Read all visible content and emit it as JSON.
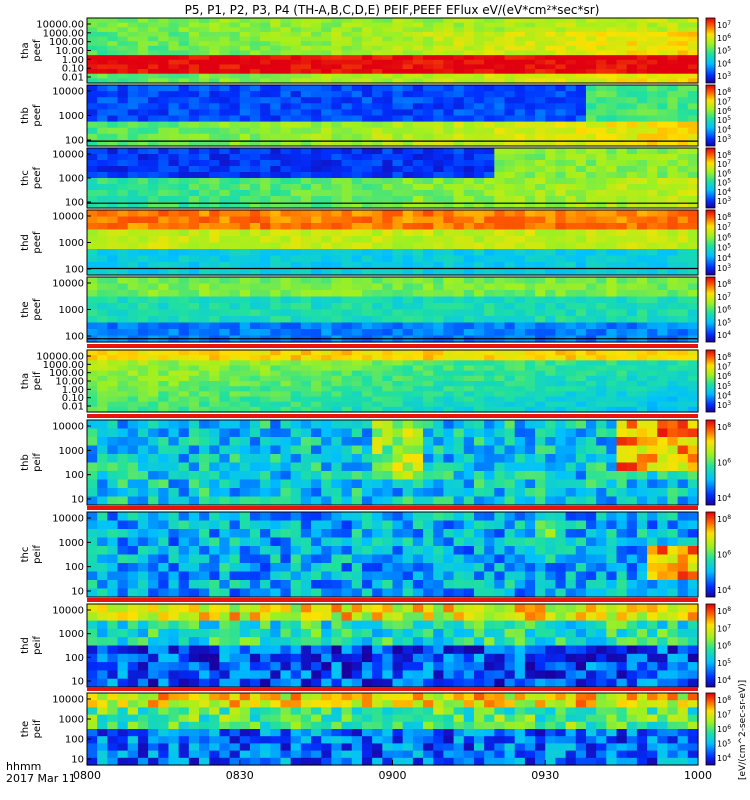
{
  "title": "P5, P1, P2, P3, P4 (TH-A,B,C,D,E) PEIF,PEEF EFlux eV/(eV*cm²*sec*sr)",
  "footer": {
    "format": "hhmm",
    "date": "2017 Mar 11"
  },
  "colorbar_label": "[eV/(cm^2-sec-sr-eV)]",
  "colors": {
    "dominant_low": "#1e2bc8",
    "dominant_high": "#e02010",
    "belt_red": "#e8140c",
    "background": "#ffffff"
  },
  "chart_data": [
    {
      "type": "heatmap",
      "id": "tha_peef",
      "ylabel": [
        "tha",
        "peef"
      ],
      "yscale": "log",
      "yticks": [
        "10000.00",
        "1000.00",
        "100.00",
        "10.00",
        "1.00",
        "0.10",
        "0.01"
      ],
      "cbar_ticks": [
        "10^7",
        "10^6",
        "10^5",
        "10^4",
        "10^3"
      ]
    },
    {
      "type": "heatmap",
      "id": "thb_peef",
      "ylabel": [
        "thb",
        "peef"
      ],
      "yscale": "log",
      "yticks": [
        "10000",
        "1000",
        "100"
      ],
      "cbar_ticks": [
        "10^8",
        "10^7",
        "10^6",
        "10^5",
        "10^4",
        "10^3"
      ]
    },
    {
      "type": "heatmap",
      "id": "thc_peef",
      "ylabel": [
        "thc",
        "peef"
      ],
      "yscale": "log",
      "yticks": [
        "10000",
        "1000",
        "100"
      ],
      "cbar_ticks": [
        "10^8",
        "10^7",
        "10^6",
        "10^5",
        "10^4",
        "10^3"
      ]
    },
    {
      "type": "heatmap",
      "id": "thd_peef",
      "ylabel": [
        "thd",
        "peef"
      ],
      "yscale": "log",
      "yticks": [
        "10000",
        "1000",
        "100"
      ],
      "cbar_ticks": [
        "10^8",
        "10^7",
        "10^6",
        "10^5",
        "10^4",
        "10^3"
      ]
    },
    {
      "type": "heatmap",
      "id": "the_peef",
      "ylabel": [
        "the",
        "peef"
      ],
      "yscale": "log",
      "yticks": [
        "10000",
        "1000",
        "100"
      ],
      "cbar_ticks": [
        "10^8",
        "10^7",
        "10^6",
        "10^5",
        "10^4"
      ]
    },
    {
      "type": "heatmap",
      "id": "tha_peif",
      "ylabel": [
        "tha",
        "peif"
      ],
      "yscale": "log",
      "yticks": [
        "10000.00",
        "1000.00",
        "100.00",
        "10.00",
        "1.00",
        "0.10",
        "0.01"
      ],
      "cbar_ticks": [
        "10^8",
        "10^7",
        "10^6",
        "10^5",
        "10^4",
        "10^3"
      ]
    },
    {
      "type": "heatmap",
      "id": "thb_peif",
      "ylabel": [
        "thb",
        "peif"
      ],
      "yscale": "log",
      "yticks": [
        "10000",
        "1000",
        "100",
        "10"
      ],
      "cbar_ticks": [
        "10^8",
        "10^6",
        "10^4"
      ]
    },
    {
      "type": "heatmap",
      "id": "thc_peif",
      "ylabel": [
        "thc",
        "peif"
      ],
      "yscale": "log",
      "yticks": [
        "10000",
        "1000",
        "100",
        "10"
      ],
      "cbar_ticks": [
        "10^8",
        "10^6",
        "10^4"
      ]
    },
    {
      "type": "heatmap",
      "id": "thd_peif",
      "ylabel": [
        "thd",
        "peif"
      ],
      "yscale": "log",
      "yticks": [
        "10000",
        "1000",
        "100",
        "10"
      ],
      "cbar_ticks": [
        "10^8",
        "10^7",
        "10^6",
        "10^5",
        "10^4"
      ]
    },
    {
      "type": "heatmap",
      "id": "the_peif",
      "ylabel": [
        "the",
        "peif"
      ],
      "yscale": "log",
      "yticks": [
        "10000",
        "1000",
        "100",
        "10"
      ],
      "cbar_ticks": [
        "10^8",
        "10^7",
        "10^6",
        "10^5",
        "10^4"
      ]
    }
  ],
  "x_axis": {
    "ticks": [
      "0800",
      "0830",
      "0900",
      "0930",
      "1000"
    ],
    "range": [
      "0800",
      "1000"
    ]
  }
}
